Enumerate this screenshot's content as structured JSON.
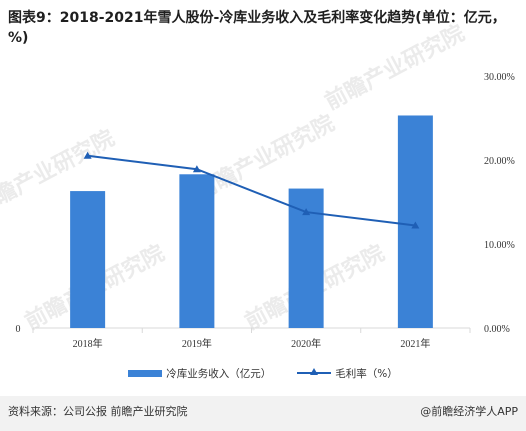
{
  "title": "图表9：2018-2021年雪人股份-冷库业务收入及毛利率变化趋势(单位：亿元，%)",
  "watermark": "前瞻产业研究院",
  "footer": {
    "source": "资料来源：公司公报 前瞻产业研究院",
    "brand": "@前瞻经济学人APP"
  },
  "colors": {
    "bar": "#3b82d6",
    "line": "#1f5fb5",
    "axis": "#d9d9d9",
    "footer_bg": "#f2f2f2"
  },
  "chart_data": {
    "type": "bar+line",
    "categories": [
      "2018年",
      "2019年",
      "2020年",
      "2021年"
    ],
    "series": [
      {
        "name": "冷库业务收入（亿元）",
        "type": "bar",
        "axis": "left",
        "values": [
          1.63,
          1.83,
          1.66,
          2.53
        ]
      },
      {
        "name": "毛利率（%）",
        "type": "line",
        "axis": "right",
        "values": [
          20.5,
          18.9,
          13.8,
          12.2
        ]
      }
    ],
    "left_axis": {
      "ylim": [
        0,
        3
      ],
      "ticks": [
        "0"
      ]
    },
    "right_axis": {
      "ylim": [
        0,
        30
      ],
      "ticks": [
        "0.00%",
        "10.00%",
        "20.00%",
        "30.00%"
      ]
    },
    "legend_position": "bottom",
    "grid": false
  }
}
